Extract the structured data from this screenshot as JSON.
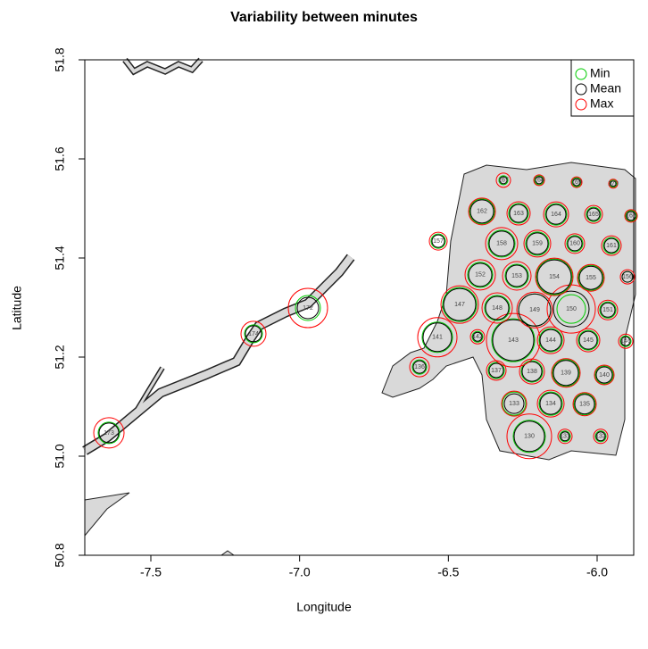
{
  "chart_data": {
    "type": "bubble",
    "title": "Variability between minutes",
    "x_label": "Longitude",
    "y_label": "Latitude",
    "xlim": [
      -7.722,
      -5.877
    ],
    "ylim": [
      50.8,
      51.8
    ],
    "xticks": [
      {
        "value": -7.5,
        "label": "-7.5"
      },
      {
        "value": -7.0,
        "label": "-7.0"
      },
      {
        "value": -6.5,
        "label": "-6.5"
      },
      {
        "value": -6.0,
        "label": "-6.0"
      }
    ],
    "yticks": [
      {
        "value": 50.8,
        "label": "50.8"
      },
      {
        "value": 51.0,
        "label": "51.0"
      },
      51.2,
      51.4,
      51.6,
      51.8
    ],
    "legend_position": "top-right",
    "labels": [
      "130",
      "131",
      "132",
      "133",
      "134",
      "135",
      "136",
      "137",
      "138",
      "139",
      "140",
      "141",
      "142",
      "143",
      "144",
      "145",
      "146",
      "147",
      "148",
      "149",
      "150",
      "151",
      "152",
      "153",
      "154",
      "155",
      "156",
      "157",
      "158",
      "159",
      "160",
      "161",
      "162",
      "163",
      "164",
      "165",
      "166",
      "167",
      "168",
      "169",
      "170",
      "172",
      "173",
      "174"
    ],
    "x": [
      -6.228,
      -6.108,
      -5.988,
      -6.279,
      -6.156,
      -6.042,
      -6.597,
      -6.339,
      -6.219,
      -6.105,
      -5.976,
      -6.537,
      -6.402,
      -6.282,
      -6.156,
      -6.03,
      -5.904,
      -6.462,
      -6.336,
      -6.21,
      -6.087,
      -5.964,
      -6.393,
      -6.27,
      -6.144,
      -6.021,
      -5.898,
      -6.534,
      -6.321,
      -6.201,
      -6.075,
      -5.952,
      -6.387,
      -6.264,
      -6.138,
      -6.012,
      -5.886,
      -6.315,
      -6.195,
      -6.069,
      -5.946,
      -6.972,
      -7.641,
      -7.155
    ],
    "y": [
      51.04,
      51.04,
      51.04,
      51.106,
      51.106,
      51.105,
      51.18,
      51.173,
      51.171,
      51.168,
      51.164,
      51.24,
      51.241,
      51.234,
      51.234,
      51.234,
      51.232,
      51.306,
      51.299,
      51.295,
      51.297,
      51.295,
      51.366,
      51.364,
      51.362,
      51.36,
      51.362,
      51.434,
      51.429,
      51.429,
      51.429,
      51.425,
      51.494,
      51.49,
      51.488,
      51.488,
      51.485,
      51.557,
      51.557,
      51.553,
      51.55,
      51.299,
      51.047,
      51.247
    ],
    "series": [
      {
        "name": "Min",
        "color": "#00cc00",
        "values": [
          18,
          6,
          6,
          13,
          13,
          12,
          8,
          9,
          12,
          15,
          10,
          17,
          6,
          24,
          13,
          11,
          6,
          19,
          14,
          18,
          16,
          9,
          14,
          13,
          20,
          14,
          6,
          8,
          15,
          13,
          9,
          9,
          14,
          11,
          12,
          8,
          6,
          5,
          5,
          5,
          4,
          14,
          12,
          10
        ]
      },
      {
        "name": "Mean",
        "color": "#000000",
        "values": [
          17,
          5,
          5,
          11,
          12,
          11,
          7,
          8,
          11,
          14,
          9,
          16,
          5,
          23,
          12,
          10,
          5,
          18,
          13,
          18,
          20,
          8,
          13,
          12,
          19,
          13,
          6,
          7,
          14,
          12,
          8,
          8,
          13,
          10,
          11,
          7,
          5,
          4,
          4,
          4,
          3,
          12,
          11,
          9
        ]
      },
      {
        "name": "Max",
        "color": "#ff0000",
        "values": [
          25,
          8,
          8,
          14,
          15,
          13,
          11,
          11,
          14,
          16,
          11,
          22,
          8,
          30,
          15,
          13,
          8,
          21,
          17,
          20,
          27,
          11,
          17,
          16,
          21,
          15,
          8,
          10,
          18,
          15,
          11,
          11,
          15,
          13,
          14,
          10,
          7,
          8,
          6,
          6,
          5,
          22,
          17,
          14
        ]
      }
    ]
  }
}
